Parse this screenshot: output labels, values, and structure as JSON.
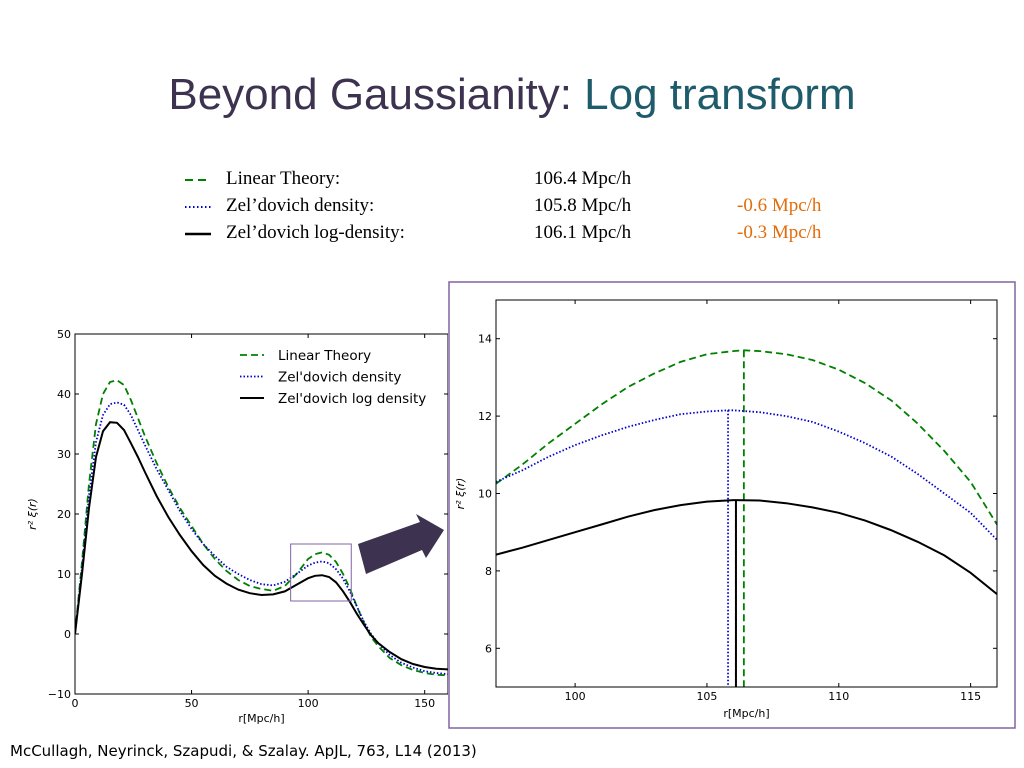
{
  "slide": {
    "title_main": "Beyond Gaussianity:",
    "title_accent": "Log transform",
    "citation": "McCullagh, Neyrinck, Szapudi, & Szalay. ApJL, 763, L14 (2013)"
  },
  "peak_table": [
    {
      "label": "Linear Theory:",
      "value": "106.4 Mpc/h",
      "diff": "",
      "color": "#008000",
      "style": "dashed"
    },
    {
      "label": "Zel’dovich density:",
      "value": "105.8 Mpc/h",
      "diff": "-0.6 Mpc/h",
      "color": "#0000cc",
      "style": "dotted"
    },
    {
      "label": "Zel’dovich log-density:",
      "value": "106.1 Mpc/h",
      "diff": "-0.3 Mpc/h",
      "color": "#000000",
      "style": "solid"
    }
  ],
  "colors": {
    "accent": "#1f5c6b",
    "title": "#3d3350",
    "diff": "#e36c0a",
    "arrow": "#3d3350",
    "zoom_box": "#8064a2"
  },
  "chart_data": [
    {
      "type": "line",
      "xlabel": "r[Mpc/h]",
      "ylabel": "r² ξ(r)",
      "xlim": [
        0,
        160
      ],
      "ylim": [
        -10,
        50
      ],
      "xticks": [
        0,
        50,
        100,
        150
      ],
      "yticks": [
        -10,
        0,
        10,
        20,
        30,
        40,
        50
      ],
      "legend": "top-right",
      "series": [
        {
          "name": "Linear Theory",
          "color": "#008000",
          "style": "dashed",
          "x": [
            0,
            3,
            6,
            9,
            12,
            15,
            18,
            21,
            24,
            27,
            30,
            35,
            40,
            45,
            50,
            55,
            60,
            65,
            70,
            75,
            80,
            85,
            90,
            95,
            100,
            103,
            106,
            109,
            112,
            115,
            118,
            121,
            124,
            127,
            130,
            135,
            140,
            145,
            150,
            155,
            160
          ],
          "y": [
            0,
            12,
            25,
            35,
            40,
            42,
            42.3,
            41.5,
            39,
            36,
            33,
            28.5,
            24.5,
            21,
            18,
            15,
            12.5,
            10.5,
            9,
            8,
            7.5,
            7.2,
            8,
            10,
            12.5,
            13.3,
            13.6,
            13.2,
            12,
            10,
            7.5,
            4.5,
            1.8,
            -0.5,
            -2,
            -4,
            -5.2,
            -6,
            -6.5,
            -6.8,
            -6.9
          ]
        },
        {
          "name": "Zel'dovich density",
          "color": "#0000cc",
          "style": "dotted",
          "x": [
            0,
            3,
            6,
            9,
            12,
            15,
            18,
            21,
            24,
            27,
            30,
            35,
            40,
            45,
            50,
            55,
            60,
            65,
            70,
            75,
            80,
            85,
            90,
            95,
            100,
            103,
            106,
            109,
            112,
            115,
            118,
            121,
            124,
            127,
            130,
            135,
            140,
            145,
            150,
            155,
            160
          ],
          "y": [
            0,
            11,
            23,
            32,
            36.5,
            38.3,
            38.6,
            38.2,
            36.5,
            34,
            31.5,
            27.5,
            24,
            20.5,
            17.5,
            15,
            13,
            11.2,
            10,
            9,
            8.3,
            8.1,
            8.7,
            10,
            11.4,
            11.9,
            12.1,
            11.8,
            10.8,
            9.2,
            7,
            4.5,
            2,
            0,
            -1.5,
            -3.5,
            -4.8,
            -5.6,
            -6.2,
            -6.5,
            -6.7
          ]
        },
        {
          "name": "Zel'dovich log density",
          "color": "#000000",
          "style": "solid",
          "x": [
            0,
            3,
            6,
            9,
            12,
            15,
            18,
            21,
            24,
            27,
            30,
            35,
            40,
            45,
            50,
            55,
            60,
            65,
            70,
            75,
            80,
            85,
            90,
            95,
            100,
            103,
            106,
            109,
            112,
            115,
            118,
            121,
            124,
            127,
            130,
            135,
            140,
            145,
            150,
            155,
            160
          ],
          "y": [
            0,
            10,
            21,
            29.5,
            33.8,
            35.3,
            35.2,
            34,
            31.8,
            29.5,
            27,
            23,
            19.5,
            16.5,
            13.8,
            11.5,
            9.7,
            8.4,
            7.4,
            6.8,
            6.5,
            6.6,
            7.1,
            8.2,
            9.3,
            9.7,
            9.8,
            9.5,
            8.6,
            7.1,
            5.3,
            3.3,
            1.5,
            -0.2,
            -1.5,
            -3,
            -4.2,
            -5,
            -5.5,
            -5.8,
            -5.9
          ]
        }
      ]
    },
    {
      "type": "line",
      "xlabel": "r[Mpc/h]",
      "ylabel": "r² ξ(r)",
      "xlim": [
        97,
        116
      ],
      "ylim": [
        5,
        15
      ],
      "xticks": [
        100,
        105,
        110,
        115
      ],
      "yticks": [
        6,
        8,
        10,
        12,
        14
      ],
      "series": [
        {
          "name": "Linear Theory",
          "color": "#008000",
          "style": "dashed",
          "peak": 106.4,
          "x": [
            97,
            98,
            99,
            100,
            101,
            102,
            103,
            104,
            105,
            106,
            106.4,
            107,
            108,
            109,
            110,
            111,
            112,
            113,
            114,
            115,
            116
          ],
          "y": [
            10.25,
            10.75,
            11.3,
            11.8,
            12.3,
            12.75,
            13.1,
            13.4,
            13.6,
            13.68,
            13.7,
            13.68,
            13.6,
            13.45,
            13.2,
            12.85,
            12.4,
            11.8,
            11.1,
            10.3,
            9.2
          ]
        },
        {
          "name": "Zel'dovich density",
          "color": "#0000cc",
          "style": "dotted",
          "peak": 105.8,
          "x": [
            97,
            98,
            99,
            100,
            101,
            102,
            103,
            104,
            105,
            105.8,
            106,
            107,
            108,
            109,
            110,
            111,
            112,
            113,
            114,
            115,
            116
          ],
          "y": [
            10.3,
            10.6,
            10.95,
            11.25,
            11.5,
            11.72,
            11.9,
            12.05,
            12.12,
            12.15,
            12.15,
            12.1,
            12.0,
            11.85,
            11.6,
            11.3,
            10.95,
            10.5,
            10.0,
            9.5,
            8.8
          ]
        },
        {
          "name": "Zel'dovich log density",
          "color": "#000000",
          "style": "solid",
          "peak": 106.1,
          "x": [
            97,
            98,
            99,
            100,
            101,
            102,
            103,
            104,
            105,
            106,
            106.1,
            107,
            108,
            109,
            110,
            111,
            112,
            113,
            114,
            115,
            116
          ],
          "y": [
            8.42,
            8.6,
            8.8,
            9.0,
            9.2,
            9.4,
            9.57,
            9.7,
            9.79,
            9.83,
            9.83,
            9.82,
            9.75,
            9.64,
            9.5,
            9.3,
            9.05,
            8.75,
            8.4,
            7.95,
            7.4
          ]
        }
      ]
    }
  ]
}
